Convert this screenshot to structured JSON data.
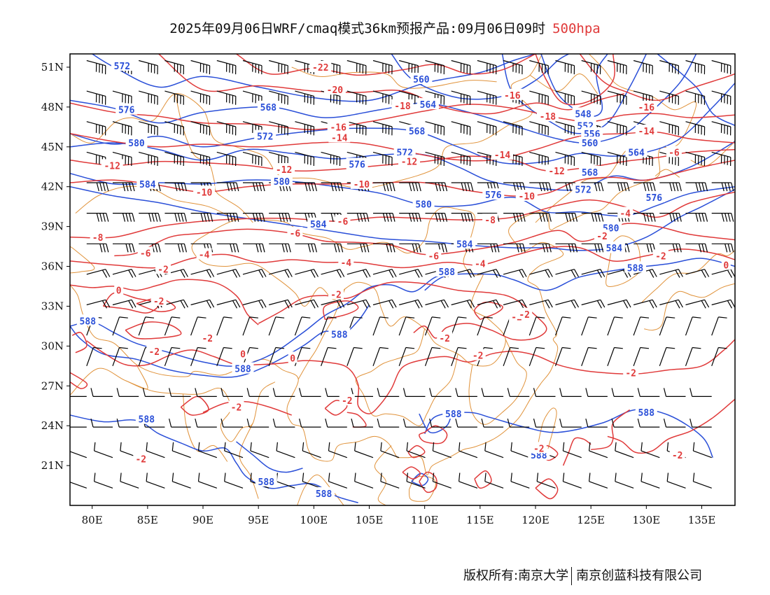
{
  "title": {
    "main": "2025年09月06日WRF/cmaq模式36km预报产品:09月06日09时",
    "level": "500hpa"
  },
  "colors": {
    "temperature_contour": "#e03a3a",
    "height_contour": "#2a4fd8",
    "border": "#e0923a",
    "wind_barb": "#000000"
  },
  "axes": {
    "lon_labels": [
      "80E",
      "85E",
      "90E",
      "95E",
      "100E",
      "105E",
      "110E",
      "115E",
      "120E",
      "125E",
      "130E",
      "135E"
    ],
    "lon_values": [
      80,
      85,
      90,
      95,
      100,
      105,
      110,
      115,
      120,
      125,
      130,
      135
    ],
    "lat_labels": [
      "51N",
      "48N",
      "45N",
      "42N",
      "39N",
      "36N",
      "33N",
      "30N",
      "27N",
      "24N",
      "21N"
    ],
    "lat_values": [
      51,
      48,
      45,
      42,
      39,
      36,
      33,
      30,
      27,
      24,
      21
    ],
    "lon_range": [
      78,
      138
    ],
    "lat_range": [
      18,
      52
    ]
  },
  "height_labels": [
    {
      "text": "572",
      "lon": 82.7,
      "lat": 51.1
    },
    {
      "text": "560",
      "lon": 109.7,
      "lat": 50.1
    },
    {
      "text": "548",
      "lon": 124.3,
      "lat": 47.5
    },
    {
      "text": "552",
      "lon": 124.5,
      "lat": 46.6
    },
    {
      "text": "556",
      "lon": 125.1,
      "lat": 46.0
    },
    {
      "text": "560",
      "lon": 124.9,
      "lat": 45.3
    },
    {
      "text": "564",
      "lon": 129.1,
      "lat": 44.6
    },
    {
      "text": "568",
      "lon": 124.9,
      "lat": 43.1
    },
    {
      "text": "572",
      "lon": 124.3,
      "lat": 41.8
    },
    {
      "text": "576",
      "lon": 130.7,
      "lat": 41.2
    },
    {
      "text": "580",
      "lon": 126.8,
      "lat": 38.9
    },
    {
      "text": "584",
      "lon": 127.1,
      "lat": 37.4
    },
    {
      "text": "588",
      "lon": 129.0,
      "lat": 35.9
    },
    {
      "text": "576",
      "lon": 83.1,
      "lat": 47.8
    },
    {
      "text": "568",
      "lon": 95.9,
      "lat": 48.0
    },
    {
      "text": "564",
      "lon": 110.3,
      "lat": 48.2
    },
    {
      "text": "568",
      "lon": 109.3,
      "lat": 46.2
    },
    {
      "text": "572",
      "lon": 95.6,
      "lat": 45.8
    },
    {
      "text": "580",
      "lon": 84.0,
      "lat": 45.3
    },
    {
      "text": "572",
      "lon": 108.2,
      "lat": 44.6
    },
    {
      "text": "576",
      "lon": 103.9,
      "lat": 43.7
    },
    {
      "text": "584",
      "lon": 85.0,
      "lat": 42.2
    },
    {
      "text": "580",
      "lon": 97.1,
      "lat": 42.4
    },
    {
      "text": "580",
      "lon": 109.9,
      "lat": 40.7
    },
    {
      "text": "576",
      "lon": 116.2,
      "lat": 41.4
    },
    {
      "text": "584",
      "lon": 100.4,
      "lat": 39.2
    },
    {
      "text": "584",
      "lon": 113.6,
      "lat": 37.7
    },
    {
      "text": "588",
      "lon": 112.0,
      "lat": 35.6
    },
    {
      "text": "588",
      "lon": 79.6,
      "lat": 31.9
    },
    {
      "text": "588",
      "lon": 102.3,
      "lat": 30.9
    },
    {
      "text": "588",
      "lon": 93.6,
      "lat": 28.3
    },
    {
      "text": "588",
      "lon": 84.9,
      "lat": 24.5
    },
    {
      "text": "588",
      "lon": 112.6,
      "lat": 24.9
    },
    {
      "text": "588",
      "lon": 130.0,
      "lat": 25.0
    },
    {
      "text": "588",
      "lon": 120.3,
      "lat": 21.8
    },
    {
      "text": "588",
      "lon": 95.7,
      "lat": 19.8
    },
    {
      "text": "588",
      "lon": 100.9,
      "lat": 18.9
    }
  ],
  "temp_labels": [
    {
      "text": "-22",
      "lon": 100.6,
      "lat": 51.0
    },
    {
      "text": "-20",
      "lon": 101.9,
      "lat": 49.3
    },
    {
      "text": "-18",
      "lon": 108.0,
      "lat": 48.1
    },
    {
      "text": "-16",
      "lon": 117.9,
      "lat": 48.9
    },
    {
      "text": "-16",
      "lon": 130.0,
      "lat": 48.0
    },
    {
      "text": "-18",
      "lon": 121.1,
      "lat": 47.3
    },
    {
      "text": "-14",
      "lon": 130.0,
      "lat": 46.2
    },
    {
      "text": "-16",
      "lon": 102.2,
      "lat": 46.5
    },
    {
      "text": "-14",
      "lon": 102.3,
      "lat": 45.7
    },
    {
      "text": "-12",
      "lon": 108.6,
      "lat": 43.9
    },
    {
      "text": "-14",
      "lon": 117.0,
      "lat": 44.4
    },
    {
      "text": "-12",
      "lon": 97.3,
      "lat": 43.3
    },
    {
      "text": "-12",
      "lon": 121.9,
      "lat": 43.2
    },
    {
      "text": "-6",
      "lon": 132.5,
      "lat": 44.6
    },
    {
      "text": "-12",
      "lon": 81.8,
      "lat": 43.6
    },
    {
      "text": "-10",
      "lon": 104.3,
      "lat": 42.2
    },
    {
      "text": "-10",
      "lon": 90.1,
      "lat": 41.6
    },
    {
      "text": "-10",
      "lon": 119.2,
      "lat": 41.3
    },
    {
      "text": "-4",
      "lon": 128.1,
      "lat": 40.0
    },
    {
      "text": "-8",
      "lon": 80.5,
      "lat": 38.2
    },
    {
      "text": "-6",
      "lon": 102.6,
      "lat": 39.4
    },
    {
      "text": "-8",
      "lon": 115.9,
      "lat": 39.5
    },
    {
      "text": "-6",
      "lon": 98.3,
      "lat": 38.5
    },
    {
      "text": "-2",
      "lon": 126.0,
      "lat": 38.3
    },
    {
      "text": "-2",
      "lon": 131.3,
      "lat": 36.8
    },
    {
      "text": "-6",
      "lon": 84.8,
      "lat": 37.0
    },
    {
      "text": "-4",
      "lon": 90.1,
      "lat": 36.9
    },
    {
      "text": "-4",
      "lon": 102.9,
      "lat": 36.3
    },
    {
      "text": "-6",
      "lon": 110.8,
      "lat": 36.8
    },
    {
      "text": "-4",
      "lon": 115.0,
      "lat": 36.2
    },
    {
      "text": "-2",
      "lon": 86.4,
      "lat": 35.8
    },
    {
      "text": "0",
      "lon": 82.4,
      "lat": 34.2
    },
    {
      "text": "0",
      "lon": 137.2,
      "lat": 36.1
    },
    {
      "text": "-2",
      "lon": 86.0,
      "lat": 33.4
    },
    {
      "text": "-2",
      "lon": 102.0,
      "lat": 33.9
    },
    {
      "text": "-2",
      "lon": 118.3,
      "lat": 32.2
    },
    {
      "text": "-2",
      "lon": 85.6,
      "lat": 29.6
    },
    {
      "text": "-2",
      "lon": 90.4,
      "lat": 30.6
    },
    {
      "text": "0",
      "lon": 93.6,
      "lat": 29.4
    },
    {
      "text": "0",
      "lon": 98.1,
      "lat": 29.1
    },
    {
      "text": "-2",
      "lon": 111.8,
      "lat": 30.6
    },
    {
      "text": "-2",
      "lon": 114.8,
      "lat": 29.3
    },
    {
      "text": "-2",
      "lon": 128.6,
      "lat": 28.0
    },
    {
      "text": "-2",
      "lon": 93.0,
      "lat": 25.4
    },
    {
      "text": "-2",
      "lon": 103.0,
      "lat": 25.9
    },
    {
      "text": "-2",
      "lon": 120.3,
      "lat": 22.3
    },
    {
      "text": "-2",
      "lon": 84.4,
      "lat": 21.5
    },
    {
      "text": "-2",
      "lon": 132.8,
      "lat": 21.8
    },
    {
      "text": "-2",
      "lon": 119.0,
      "lat": 32.4
    }
  ],
  "copyright": {
    "left": "版权所有:南京大学",
    "right": "南京创蓝科技有限公司"
  }
}
